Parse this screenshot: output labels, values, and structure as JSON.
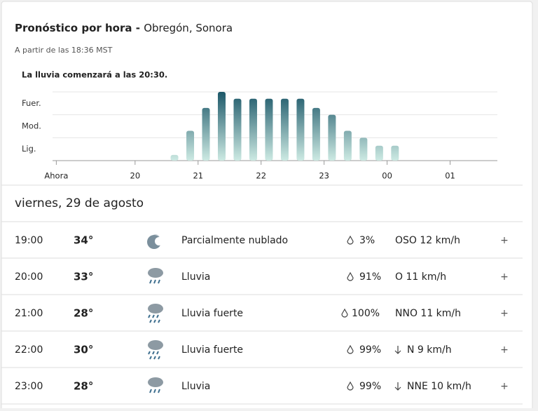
{
  "header": {
    "title": "Pronóstico por hora",
    "separator": "-",
    "location": "Obregón, Sonora",
    "subtitle": "A partir de las 18:36 MST"
  },
  "chart_data": {
    "type": "bar",
    "title": "La lluvia comenzará a las 20:30.",
    "x": [
      20.625,
      20.875,
      21.125,
      21.375,
      21.625,
      21.875,
      22.125,
      22.375,
      22.625,
      22.875,
      23.125,
      23.375,
      23.625,
      23.875,
      24.125
    ],
    "values": [
      0.25,
      1.3,
      2.3,
      3.0,
      2.7,
      2.7,
      2.7,
      2.7,
      2.7,
      2.3,
      2.0,
      1.3,
      1.0,
      0.65,
      0.65
    ],
    "xlim": [
      18.69,
      25.75
    ],
    "xticks": [
      {
        "value": 18.75,
        "label": "Ahora"
      },
      20,
      21,
      22,
      23,
      {
        "value": 24,
        "label": "00"
      },
      {
        "value": 25,
        "label": "01"
      }
    ],
    "ylim": [
      0,
      3
    ],
    "yticks": [
      0,
      1,
      2,
      3
    ],
    "levels": [
      "Lig.",
      "Mod.",
      "Fuer."
    ],
    "grid": true,
    "color_top": "#1d5869",
    "color_bottom": "#cdeae3"
  },
  "table": {
    "day": "viernes, 29 de agosto",
    "rows": [
      [
        "19:00",
        "34°",
        "Parcialmente nublado",
        "3%",
        "OSO 12 km/h",
        "+"
      ],
      [
        "20:00",
        "33°",
        "Lluvia",
        "91%",
        "O 11 km/h",
        "+"
      ],
      [
        "21:00",
        "28°",
        "Lluvia fuerte",
        "100%",
        "NNO 11 km/h",
        "+"
      ],
      [
        "22:00",
        "30°",
        "Lluvia fuerte",
        "99%",
        "N 9 km/h",
        "+"
      ],
      [
        "23:00",
        "28°",
        "Lluvia",
        "99%",
        "NNE 10 km/h",
        "+"
      ]
    ]
  }
}
